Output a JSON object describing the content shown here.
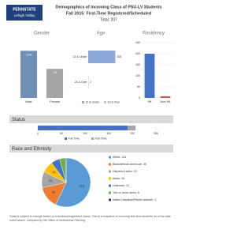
{
  "header": {
    "institution": "PENNSTATE",
    "campus": "Lehigh Valley",
    "title": "Demographics of Incoming Class of PSU-LV Students",
    "subtitle": "Fall 2015: First-Time Registered/Scheduled",
    "total": "Total: 207"
  },
  "chart_data": [
    {
      "type": "bar",
      "title": "Gender",
      "categories": [
        "Male",
        "Female"
      ],
      "values": [
        128,
        79
      ],
      "colors": [
        "#6f8fb5",
        "#a6a6a6"
      ],
      "ylim": [
        0,
        150
      ]
    },
    {
      "type": "hbar",
      "title": "Age",
      "categories": [
        "22 & Under",
        "23 & Over"
      ],
      "values": [
        205,
        2
      ],
      "colors": [
        "#8eaadb",
        "#c9c9c9"
      ],
      "xlim": [
        0,
        250
      ]
    },
    {
      "type": "bar",
      "title": "Residency",
      "categories": [
        "PA",
        "Non-PA"
      ],
      "values": [
        200,
        7
      ],
      "colors": [
        "#4472c4",
        "#c0504d"
      ],
      "ylim": [
        0,
        250
      ],
      "yticks": [
        0,
        50,
        100,
        150,
        200,
        250
      ],
      "grid": true
    },
    {
      "type": "stacked-hbar",
      "title": "Status",
      "xlim": [
        0,
        250
      ],
      "xticks": [
        0,
        50,
        100,
        150,
        200,
        250
      ],
      "series": [
        {
          "name": "Full Time",
          "color": "#4472c4",
          "values": [
            190
          ]
        },
        {
          "name": "Part Time",
          "color": "#a5a5a5",
          "values": [
            17
          ]
        }
      ]
    },
    {
      "type": "pie",
      "title": "Race and Ethnicity",
      "categories": [
        "White: 118",
        "Black/African American: 30",
        "Hispanic/Latino: 22",
        "Asian: 16",
        "Unknown: 12",
        "Two or more races: 8",
        "Native Hawaiian/Pacific Islander: 1"
      ],
      "values": [
        118,
        30,
        22,
        16,
        12,
        8,
        1
      ],
      "colors": [
        "#5b9bd5",
        "#ed7d31",
        "#a5a5a5",
        "#ffc000",
        "#4472c4",
        "#70ad47",
        "#264478"
      ]
    }
  ],
  "footer": {
    "note": "*Data is subject to change based on scheduled/registered status. This is a snapshot of incoming first-time students as of the date noted above. Compiled by the Office of Institutional Planning."
  }
}
